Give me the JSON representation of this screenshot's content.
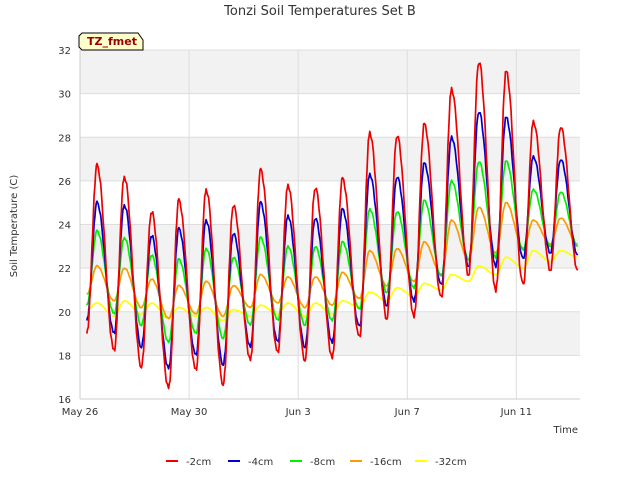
{
  "chart_data": {
    "type": "line",
    "title": "Tonzi Soil Temperatures Set B",
    "xlabel": "Time",
    "ylabel": "Soil Temperature (C)",
    "badge": "TZ_fmet",
    "ylim": [
      16,
      32
    ],
    "yticks": [
      16,
      18,
      20,
      22,
      24,
      26,
      28,
      30,
      32
    ],
    "xlim": [
      "2024-05-26",
      "2024-06-13 08:00"
    ],
    "xticks": [
      {
        "date": "2024-05-26",
        "label": "May 26"
      },
      {
        "date": "2024-05-30",
        "label": "May 30"
      },
      {
        "date": "2024-06-03",
        "label": "Jun 3"
      },
      {
        "date": "2024-06-07",
        "label": "Jun 7"
      },
      {
        "date": "2024-06-11",
        "label": "Jun 11"
      }
    ],
    "grid": true,
    "legend_position": "bottom",
    "x_resolution": "daily peaks (approx. 15:00) and troughs (approx. 06:00)",
    "x": [
      "2024-05-26 06:00",
      "2024-05-26 15:00",
      "2024-05-27 06:00",
      "2024-05-27 15:00",
      "2024-05-28 06:00",
      "2024-05-28 15:00",
      "2024-05-29 06:00",
      "2024-05-29 15:00",
      "2024-05-30 06:00",
      "2024-05-30 15:00",
      "2024-05-31 06:00",
      "2024-05-31 15:00",
      "2024-06-01 06:00",
      "2024-06-01 15:00",
      "2024-06-02 06:00",
      "2024-06-02 15:00",
      "2024-06-03 06:00",
      "2024-06-03 15:00",
      "2024-06-04 06:00",
      "2024-06-04 15:00",
      "2024-06-05 06:00",
      "2024-06-05 15:00",
      "2024-06-06 06:00",
      "2024-06-06 15:00",
      "2024-06-07 06:00",
      "2024-06-07 15:00",
      "2024-06-08 06:00",
      "2024-06-08 15:00",
      "2024-06-09 06:00",
      "2024-06-09 15:00",
      "2024-06-10 06:00",
      "2024-06-10 15:00",
      "2024-06-11 06:00",
      "2024-06-11 15:00",
      "2024-06-12 06:00",
      "2024-06-12 15:00",
      "2024-06-13 06:00"
    ],
    "series": [
      {
        "name": "-2cm",
        "color": "#ee0000",
        "values": [
          19.0,
          26.7,
          18.2,
          26.2,
          17.5,
          24.6,
          16.5,
          25.1,
          17.3,
          25.6,
          16.7,
          24.9,
          17.8,
          26.5,
          18.1,
          25.8,
          17.8,
          25.7,
          17.9,
          26.1,
          18.8,
          28.2,
          19.7,
          28.1,
          19.8,
          28.6,
          20.6,
          30.2,
          21.7,
          31.5,
          21.0,
          31.0,
          21.2,
          28.7,
          21.9,
          28.5,
          21.9
        ]
      },
      {
        "name": "-4cm",
        "color": "#0000cc",
        "values": [
          19.6,
          25.0,
          19.0,
          24.9,
          18.4,
          23.5,
          17.4,
          23.8,
          18.0,
          24.2,
          17.6,
          23.6,
          18.4,
          25.0,
          18.6,
          24.4,
          18.4,
          24.3,
          18.6,
          24.7,
          19.3,
          26.3,
          20.3,
          26.2,
          20.5,
          26.8,
          21.2,
          28.0,
          22.1,
          29.2,
          22.1,
          28.9,
          22.4,
          27.1,
          22.7,
          27.0,
          22.6
        ]
      },
      {
        "name": "-8cm",
        "color": "#00ee00",
        "values": [
          20.3,
          23.7,
          19.9,
          23.4,
          19.4,
          22.6,
          18.6,
          22.4,
          19.0,
          22.9,
          18.8,
          22.5,
          19.4,
          23.4,
          19.6,
          23.0,
          19.4,
          23.0,
          19.6,
          23.2,
          20.1,
          24.7,
          20.9,
          24.6,
          21.1,
          25.1,
          21.6,
          26.0,
          22.4,
          26.9,
          22.5,
          26.9,
          22.8,
          25.6,
          23.0,
          25.5,
          23.0
        ]
      },
      {
        "name": "-16cm",
        "color": "#ff9900",
        "values": [
          20.8,
          22.1,
          20.5,
          22.0,
          20.2,
          21.5,
          19.7,
          21.2,
          19.9,
          21.4,
          19.8,
          21.2,
          20.2,
          21.7,
          20.4,
          21.6,
          20.2,
          21.6,
          20.3,
          21.8,
          20.6,
          22.8,
          21.2,
          22.9,
          21.4,
          23.2,
          21.7,
          24.2,
          22.4,
          24.8,
          22.7,
          25.0,
          22.9,
          24.2,
          23.1,
          24.3,
          23.1
        ]
      },
      {
        "name": "-32cm",
        "color": "#ffff00",
        "values": [
          20.1,
          20.4,
          19.8,
          20.5,
          19.9,
          20.4,
          19.7,
          20.2,
          19.8,
          20.2,
          19.6,
          20.1,
          19.8,
          20.3,
          19.9,
          20.4,
          19.8,
          20.4,
          19.9,
          20.5,
          20.2,
          20.9,
          20.5,
          21.1,
          20.7,
          21.3,
          21.0,
          21.7,
          21.4,
          22.1,
          21.7,
          22.5,
          22.0,
          22.8,
          22.3,
          22.8,
          22.5
        ]
      }
    ]
  }
}
